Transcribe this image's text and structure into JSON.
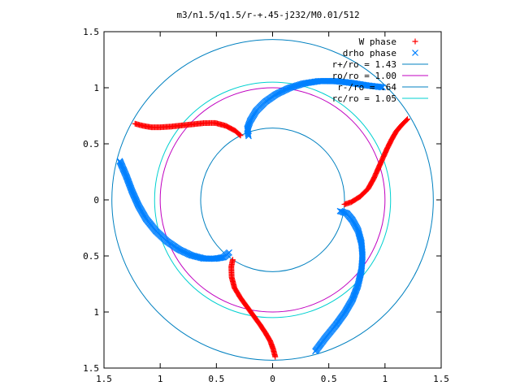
{
  "chart_data": {
    "type": "scatter",
    "title": "m3/n1.5/q1.5/r-+.45-j232/M0.01/512",
    "xlabel": "",
    "ylabel": "",
    "xlim": [
      -1.5,
      1.5
    ],
    "ylim": [
      -1.5,
      1.5
    ],
    "xticks": [
      {
        "value": -1.5,
        "label": "1.5"
      },
      {
        "value": -1.0,
        "label": "1"
      },
      {
        "value": -0.5,
        "label": "0.5"
      },
      {
        "value": 0.0,
        "label": "0"
      },
      {
        "value": 0.5,
        "label": "0.5"
      },
      {
        "value": 1.0,
        "label": "1"
      },
      {
        "value": 1.5,
        "label": "1.5"
      }
    ],
    "yticks": [
      {
        "value": 1.5,
        "label": "1.5"
      },
      {
        "value": 1.0,
        "label": "1"
      },
      {
        "value": 0.5,
        "label": "0.5"
      },
      {
        "value": 0.0,
        "label": "0"
      },
      {
        "value": -0.5,
        "label": "0.5"
      },
      {
        "value": -1.0,
        "label": "1"
      },
      {
        "value": -1.5,
        "label": "1.5"
      }
    ],
    "grid": false,
    "legend_position": "top-right",
    "legend": [
      {
        "label": "W phase",
        "kind": "plus",
        "color": "#ff0000"
      },
      {
        "label": "drho phase",
        "kind": "cross",
        "color": "#0080ff"
      },
      {
        "label": "r+/ro = 1.43",
        "kind": "line",
        "color": "#0080c0"
      },
      {
        "label": "ro/ro = 1.00",
        "kind": "line",
        "color": "#c000c0"
      },
      {
        "label": "r-/ro = .64",
        "kind": "line",
        "color": "#0080c0"
      },
      {
        "label": "rc/ro = 1.05",
        "kind": "line",
        "color": "#00d0d0"
      }
    ],
    "circles": [
      {
        "radius": 1.43,
        "color": "#0080c0"
      },
      {
        "radius": 1.0,
        "color": "#c000c0"
      },
      {
        "radius": 0.64,
        "color": "#0080c0"
      },
      {
        "radius": 1.05,
        "color": "#00d0d0"
      }
    ],
    "series": [
      {
        "name": "W phase",
        "marker": "plus",
        "color": "#ff0000",
        "x": [
          0.64,
          0.7,
          0.78,
          0.85,
          0.9,
          0.94,
          0.98,
          1.02,
          1.06,
          1.1,
          1.15,
          1.2
        ],
        "y": [
          -0.04,
          -0.02,
          0.03,
          0.1,
          0.19,
          0.28,
          0.37,
          0.46,
          0.54,
          0.61,
          0.67,
          0.72
        ],
        "rotations": [
          0,
          120,
          240
        ]
      },
      {
        "name": "drho phase",
        "marker": "cross",
        "color": "#0080ff",
        "x": [
          0.6,
          0.66,
          0.71,
          0.76,
          0.79,
          0.8,
          0.79,
          0.76,
          0.71,
          0.64,
          0.56,
          0.47,
          0.38
        ],
        "y": [
          -0.1,
          -0.12,
          -0.18,
          -0.27,
          -0.38,
          -0.5,
          -0.63,
          -0.76,
          -0.89,
          -1.01,
          -1.12,
          -1.23,
          -1.35
        ],
        "rotations": [
          0,
          120,
          240
        ]
      }
    ]
  }
}
